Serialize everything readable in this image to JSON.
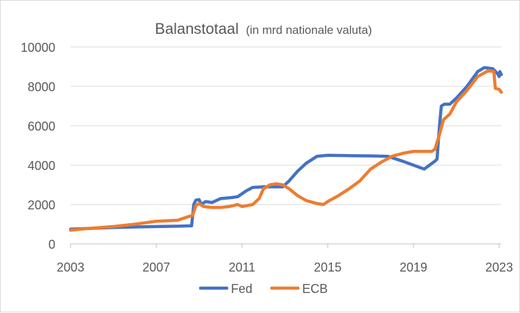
{
  "chart_data": {
    "type": "line",
    "title": "Balanstotaal",
    "subtitle": "(in mrd nationale valuta)",
    "ylim": [
      0,
      10000
    ],
    "y_ticks": [
      "0",
      "2000",
      "4000",
      "6000",
      "8000",
      "10000"
    ],
    "xlim": [
      2003,
      2023.1
    ],
    "x_ticks": [
      "2003",
      "2007",
      "2011",
      "2015",
      "2019",
      "2023"
    ],
    "grid": "horizontal",
    "legend_position": "bottom",
    "series": [
      {
        "name": "Fed",
        "color": "#4472C4",
        "points": [
          [
            2003.0,
            750
          ],
          [
            2004.0,
            790
          ],
          [
            2005.0,
            830
          ],
          [
            2006.0,
            860
          ],
          [
            2007.0,
            880
          ],
          [
            2008.0,
            900
          ],
          [
            2008.65,
            920
          ],
          [
            2008.75,
            2000
          ],
          [
            2008.85,
            2220
          ],
          [
            2009.0,
            2250
          ],
          [
            2009.1,
            2000
          ],
          [
            2009.3,
            2150
          ],
          [
            2009.6,
            2100
          ],
          [
            2010.0,
            2300
          ],
          [
            2010.5,
            2350
          ],
          [
            2010.8,
            2400
          ],
          [
            2011.2,
            2700
          ],
          [
            2011.5,
            2870
          ],
          [
            2012.0,
            2900
          ],
          [
            2012.5,
            2900
          ],
          [
            2012.9,
            2900
          ],
          [
            2013.2,
            3200
          ],
          [
            2013.6,
            3700
          ],
          [
            2014.0,
            4100
          ],
          [
            2014.5,
            4450
          ],
          [
            2015.0,
            4500
          ],
          [
            2016.0,
            4480
          ],
          [
            2017.0,
            4470
          ],
          [
            2017.8,
            4450
          ],
          [
            2018.5,
            4200
          ],
          [
            2019.0,
            4000
          ],
          [
            2019.5,
            3800
          ],
          [
            2019.75,
            4000
          ],
          [
            2020.0,
            4200
          ],
          [
            2020.1,
            4300
          ],
          [
            2020.2,
            5800
          ],
          [
            2020.3,
            7000
          ],
          [
            2020.45,
            7100
          ],
          [
            2020.7,
            7100
          ],
          [
            2021.0,
            7400
          ],
          [
            2021.5,
            8000
          ],
          [
            2022.0,
            8750
          ],
          [
            2022.3,
            8950
          ],
          [
            2022.7,
            8900
          ],
          [
            2022.95,
            8600
          ],
          [
            2023.0,
            8500
          ],
          [
            2023.03,
            8750
          ],
          [
            2023.1,
            8600
          ]
        ]
      },
      {
        "name": "ECB",
        "color": "#ED7D31",
        "points": [
          [
            2003.0,
            700
          ],
          [
            2004.0,
            800
          ],
          [
            2005.0,
            880
          ],
          [
            2006.0,
            1000
          ],
          [
            2007.0,
            1150
          ],
          [
            2008.0,
            1200
          ],
          [
            2008.4,
            1350
          ],
          [
            2008.7,
            1450
          ],
          [
            2008.85,
            1950
          ],
          [
            2009.0,
            2050
          ],
          [
            2009.2,
            1900
          ],
          [
            2009.6,
            1850
          ],
          [
            2010.0,
            1850
          ],
          [
            2010.4,
            1900
          ],
          [
            2010.8,
            2000
          ],
          [
            2011.0,
            1900
          ],
          [
            2011.5,
            2000
          ],
          [
            2011.8,
            2300
          ],
          [
            2012.0,
            2800
          ],
          [
            2012.3,
            3000
          ],
          [
            2012.6,
            3050
          ],
          [
            2012.9,
            3000
          ],
          [
            2013.2,
            2800
          ],
          [
            2013.6,
            2450
          ],
          [
            2014.0,
            2200
          ],
          [
            2014.5,
            2050
          ],
          [
            2014.8,
            2000
          ],
          [
            2015.0,
            2150
          ],
          [
            2015.5,
            2450
          ],
          [
            2016.0,
            2800
          ],
          [
            2016.5,
            3200
          ],
          [
            2017.0,
            3800
          ],
          [
            2017.5,
            4150
          ],
          [
            2018.0,
            4450
          ],
          [
            2018.5,
            4600
          ],
          [
            2019.0,
            4700
          ],
          [
            2019.5,
            4700
          ],
          [
            2019.85,
            4700
          ],
          [
            2020.0,
            4800
          ],
          [
            2020.2,
            5500
          ],
          [
            2020.4,
            6300
          ],
          [
            2020.7,
            6600
          ],
          [
            2021.0,
            7200
          ],
          [
            2021.5,
            7800
          ],
          [
            2022.0,
            8500
          ],
          [
            2022.5,
            8800
          ],
          [
            2022.75,
            8750
          ],
          [
            2022.82,
            7900
          ],
          [
            2023.0,
            7850
          ],
          [
            2023.1,
            7700
          ]
        ]
      }
    ]
  }
}
